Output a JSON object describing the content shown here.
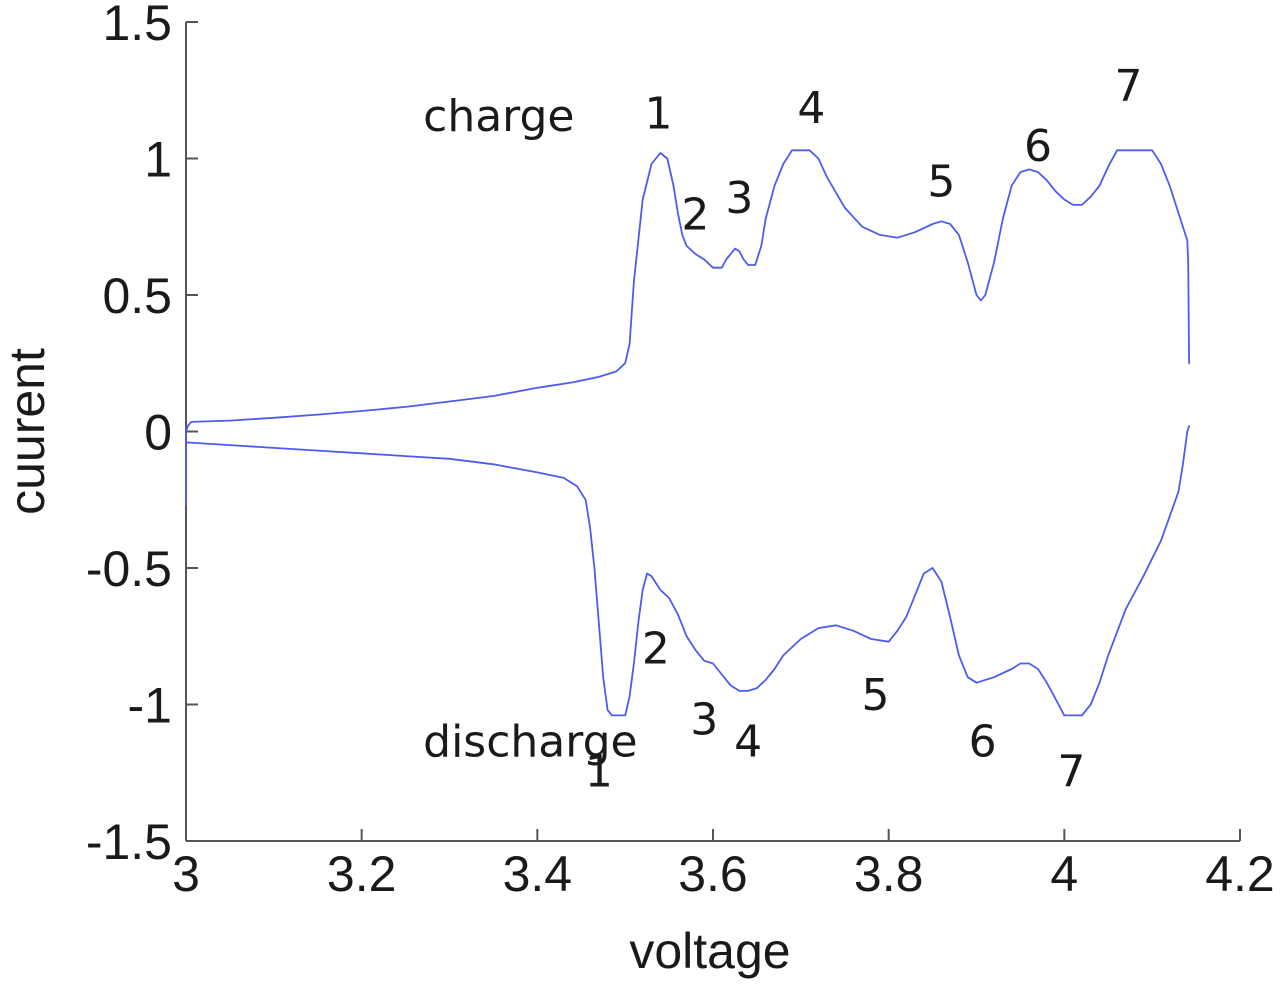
{
  "chart_data": {
    "type": "line",
    "title": "",
    "xlabel": "voltage",
    "ylabel": "cuurent",
    "xlim": [
      3,
      4.2
    ],
    "ylim": [
      -1.5,
      1.5
    ],
    "xticks": [
      3,
      3.2,
      3.4,
      3.6,
      3.8,
      4,
      4.2
    ],
    "xtick_labels": [
      "3",
      "3.2",
      "3.4",
      "3.6",
      "3.8",
      "4",
      "4.2"
    ],
    "yticks": [
      1.5,
      1,
      0.5,
      0,
      -0.5,
      -1,
      -1.5
    ],
    "ytick_labels": [
      "1.5",
      "1",
      "0.5",
      "0",
      "-0.5",
      "-1",
      "-1.5"
    ],
    "grid": false,
    "line_color": "#4f5bf0",
    "series": [
      {
        "key": "charge",
        "x": [
          3.0,
          3.0,
          3.002,
          3.006,
          3.05,
          3.1,
          3.15,
          3.2,
          3.25,
          3.3,
          3.35,
          3.4,
          3.44,
          3.47,
          3.49,
          3.5,
          3.505,
          3.51,
          3.52,
          3.53,
          3.54,
          3.548,
          3.555,
          3.56,
          3.565,
          3.57,
          3.58,
          3.59,
          3.6,
          3.61,
          3.615,
          3.625,
          3.63,
          3.635,
          3.64,
          3.648,
          3.655,
          3.66,
          3.67,
          3.68,
          3.69,
          3.7,
          3.71,
          3.72,
          3.73,
          3.75,
          3.77,
          3.79,
          3.81,
          3.83,
          3.85,
          3.86,
          3.87,
          3.88,
          3.89,
          3.9,
          3.905,
          3.91,
          3.92,
          3.93,
          3.94,
          3.95,
          3.96,
          3.97,
          3.98,
          3.99,
          4.0,
          4.01,
          4.02,
          4.03,
          4.04,
          4.05,
          4.06,
          4.07,
          4.09,
          4.1,
          4.11,
          4.12,
          4.13,
          4.14,
          4.141,
          4.142
        ],
        "y": [
          -0.27,
          0.0,
          0.02,
          0.035,
          0.04,
          0.05,
          0.062,
          0.075,
          0.09,
          0.11,
          0.13,
          0.16,
          0.18,
          0.2,
          0.22,
          0.25,
          0.32,
          0.55,
          0.85,
          0.98,
          1.02,
          1.0,
          0.9,
          0.8,
          0.72,
          0.68,
          0.65,
          0.63,
          0.6,
          0.6,
          0.63,
          0.67,
          0.66,
          0.63,
          0.61,
          0.61,
          0.68,
          0.78,
          0.9,
          0.98,
          1.03,
          1.03,
          1.03,
          1.0,
          0.93,
          0.82,
          0.75,
          0.72,
          0.71,
          0.73,
          0.76,
          0.77,
          0.76,
          0.72,
          0.62,
          0.5,
          0.48,
          0.5,
          0.62,
          0.78,
          0.9,
          0.95,
          0.96,
          0.95,
          0.92,
          0.88,
          0.85,
          0.83,
          0.83,
          0.86,
          0.9,
          0.97,
          1.03,
          1.03,
          1.03,
          1.03,
          0.98,
          0.9,
          0.8,
          0.7,
          0.62,
          0.25
        ]
      },
      {
        "key": "discharge",
        "x": [
          3.0,
          3.05,
          3.1,
          3.15,
          3.2,
          3.25,
          3.3,
          3.35,
          3.4,
          3.43,
          3.445,
          3.455,
          3.46,
          3.465,
          3.47,
          3.475,
          3.48,
          3.485,
          3.49,
          3.5,
          3.505,
          3.51,
          3.515,
          3.52,
          3.525,
          3.53,
          3.54,
          3.55,
          3.56,
          3.57,
          3.58,
          3.59,
          3.6,
          3.61,
          3.62,
          3.63,
          3.64,
          3.65,
          3.66,
          3.67,
          3.68,
          3.7,
          3.72,
          3.74,
          3.76,
          3.78,
          3.8,
          3.81,
          3.82,
          3.83,
          3.84,
          3.85,
          3.86,
          3.87,
          3.88,
          3.89,
          3.9,
          3.92,
          3.94,
          3.95,
          3.96,
          3.97,
          3.98,
          3.99,
          4.0,
          4.01,
          4.02,
          4.03,
          4.04,
          4.05,
          4.07,
          4.09,
          4.11,
          4.13,
          4.135,
          4.14,
          4.142
        ],
        "y": [
          -0.04,
          -0.05,
          -0.06,
          -0.07,
          -0.08,
          -0.09,
          -0.1,
          -0.12,
          -0.15,
          -0.17,
          -0.2,
          -0.25,
          -0.35,
          -0.5,
          -0.7,
          -0.9,
          -1.02,
          -1.04,
          -1.04,
          -1.04,
          -0.97,
          -0.85,
          -0.7,
          -0.58,
          -0.52,
          -0.53,
          -0.58,
          -0.61,
          -0.67,
          -0.75,
          -0.8,
          -0.84,
          -0.85,
          -0.89,
          -0.93,
          -0.95,
          -0.95,
          -0.94,
          -0.91,
          -0.87,
          -0.82,
          -0.76,
          -0.72,
          -0.71,
          -0.73,
          -0.76,
          -0.77,
          -0.73,
          -0.68,
          -0.6,
          -0.52,
          -0.5,
          -0.55,
          -0.68,
          -0.82,
          -0.9,
          -0.92,
          -0.9,
          -0.87,
          -0.85,
          -0.85,
          -0.87,
          -0.92,
          -0.98,
          -1.04,
          -1.04,
          -1.04,
          -1.0,
          -0.92,
          -0.82,
          -0.65,
          -0.53,
          -0.4,
          -0.22,
          -0.12,
          0.0,
          0.02
        ]
      }
    ],
    "annotations": [
      {
        "text": "charge",
        "x": 3.27,
        "y": 1.1
      },
      {
        "text": "discharge",
        "x": 3.27,
        "y": -1.19
      },
      {
        "text": "1",
        "x": 3.538,
        "y": 1.11
      },
      {
        "text": "2",
        "x": 3.58,
        "y": 0.74
      },
      {
        "text": "3",
        "x": 3.63,
        "y": 0.8
      },
      {
        "text": "4",
        "x": 3.712,
        "y": 1.13
      },
      {
        "text": "5",
        "x": 3.86,
        "y": 0.86
      },
      {
        "text": "6",
        "x": 3.97,
        "y": 0.99
      },
      {
        "text": "7",
        "x": 4.073,
        "y": 1.21
      },
      {
        "text": "1",
        "x": 3.47,
        "y": -1.3
      },
      {
        "text": "2",
        "x": 3.535,
        "y": -0.85
      },
      {
        "text": "3",
        "x": 3.59,
        "y": -1.11
      },
      {
        "text": "4",
        "x": 3.64,
        "y": -1.19
      },
      {
        "text": "5",
        "x": 3.785,
        "y": -1.02
      },
      {
        "text": "6",
        "x": 3.907,
        "y": -1.19
      },
      {
        "text": "7",
        "x": 4.008,
        "y": -1.3
      }
    ]
  }
}
